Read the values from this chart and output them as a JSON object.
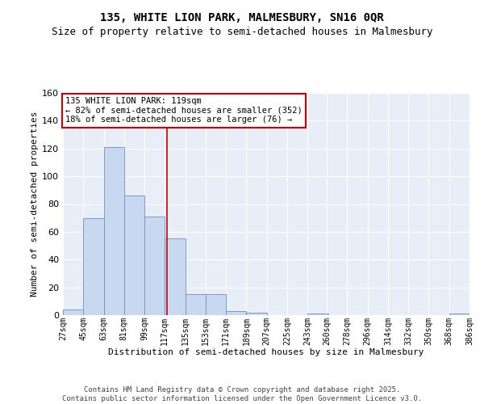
{
  "title": "135, WHITE LION PARK, MALMESBURY, SN16 0QR",
  "subtitle": "Size of property relative to semi-detached houses in Malmesbury",
  "xlabel": "Distribution of semi-detached houses by size in Malmesbury",
  "ylabel": "Number of semi-detached properties",
  "bin_edges": [
    27,
    45,
    63,
    81,
    99,
    117,
    135,
    153,
    171,
    189,
    207,
    225,
    243,
    260,
    278,
    296,
    314,
    332,
    350,
    368,
    386
  ],
  "bin_labels": [
    "27sqm",
    "45sqm",
    "63sqm",
    "81sqm",
    "99sqm",
    "117sqm",
    "135sqm",
    "153sqm",
    "171sqm",
    "189sqm",
    "207sqm",
    "225sqm",
    "243sqm",
    "260sqm",
    "278sqm",
    "296sqm",
    "314sqm",
    "332sqm",
    "350sqm",
    "368sqm",
    "386sqm"
  ],
  "counts": [
    4,
    70,
    121,
    86,
    71,
    55,
    15,
    15,
    3,
    2,
    0,
    0,
    1,
    0,
    0,
    0,
    0,
    0,
    0,
    1
  ],
  "bar_color": "#c8d8f0",
  "bar_edge_color": "#7090c0",
  "property_value": 119,
  "vline_color": "#cc0000",
  "annotation_text": "135 WHITE LION PARK: 119sqm\n← 82% of semi-detached houses are smaller (352)\n18% of semi-detached houses are larger (76) →",
  "annotation_box_color": "#ffffff",
  "annotation_box_edge_color": "#cc0000",
  "ylim": [
    0,
    160
  ],
  "background_color": "#e8eef8",
  "grid_color": "#ffffff",
  "footer_text": "Contains HM Land Registry data © Crown copyright and database right 2025.\nContains public sector information licensed under the Open Government Licence v3.0.",
  "title_fontsize": 10,
  "subtitle_fontsize": 9,
  "xlabel_fontsize": 8,
  "ylabel_fontsize": 8,
  "tick_fontsize": 7,
  "annotation_fontsize": 7.5,
  "footer_fontsize": 6.5
}
